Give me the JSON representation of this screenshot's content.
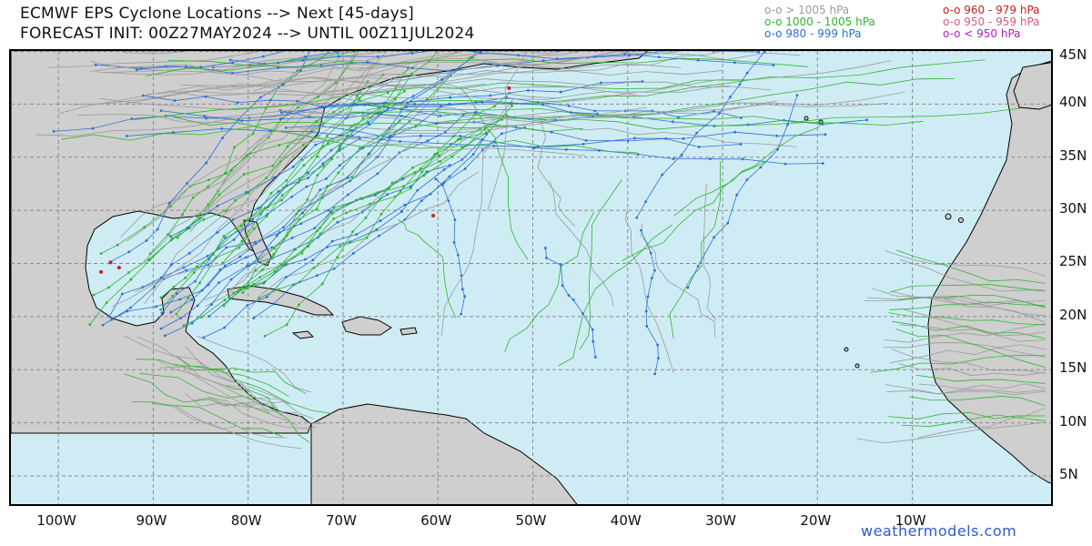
{
  "title": {
    "line1": "ECMWF EPS Cyclone Locations --> Next [45-days]",
    "line2": "FORECAST INIT: 00Z27MAY2024 --> UNTIL 00Z11JUL2024"
  },
  "legend": [
    {
      "label": "o-o > 1005 hPa",
      "color": "#9a9a9a"
    },
    {
      "label": "o-o 1000 - 1005 hPa",
      "color": "#2fb52f"
    },
    {
      "label": "o-o 980 - 999 hPa",
      "color": "#2f6fd6"
    },
    {
      "label": "o-o 960 - 979 hPa",
      "color": "#c81e1e"
    },
    {
      "label": "o-o 950 - 959 hPa",
      "color": "#d0607a"
    },
    {
      "label": "o-o < 950 hPa",
      "color": "#b01fc0"
    }
  ],
  "colors": {
    "ocean": "#cfecf4",
    "land": "#cfcfcf",
    "grid": "#8a8a8a"
  },
  "axes": {
    "lon_ticks": [
      "100W",
      "90W",
      "80W",
      "70W",
      "60W",
      "50W",
      "40W",
      "30W",
      "20W",
      "10W"
    ],
    "lat_ticks": [
      "45N",
      "40N",
      "35N",
      "30N",
      "25N",
      "20N",
      "15N",
      "10N",
      "5N"
    ],
    "lon_range": [
      -105,
      5
    ],
    "lat_range": [
      2,
      45
    ]
  },
  "credit": "weathermodels.com"
}
